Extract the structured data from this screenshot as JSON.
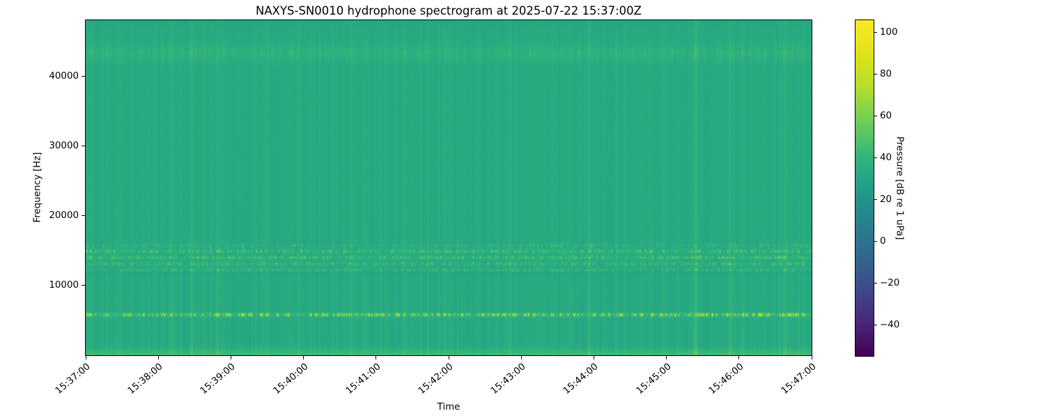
{
  "figure": {
    "background_color": "#ffffff",
    "text_color": "#000000"
  },
  "chart_data": {
    "type": "heatmap",
    "subtype": "spectrogram",
    "title": "NAXYS-SN0010 hydrophone spectrogram at 2025-07-22 15:37:00Z",
    "xlabel": "Time",
    "ylabel": "Frequency [Hz]",
    "x_ticks": [
      "15:37:00",
      "15:38:00",
      "15:39:00",
      "15:40:00",
      "15:41:00",
      "15:42:00",
      "15:43:00",
      "15:44:00",
      "15:45:00",
      "15:46:00",
      "15:47:00"
    ],
    "x_range": [
      "15:37:00",
      "15:47:00"
    ],
    "x_span_seconds": 600,
    "y_ticks": [
      10000,
      20000,
      30000,
      40000
    ],
    "y_tick_labels": [
      "10000",
      "20000",
      "30000",
      "40000"
    ],
    "freq_range_hz": [
      0,
      48000
    ],
    "grid": false,
    "colormap": "viridis",
    "colorbar": {
      "label": "Pressure [dB re 1 uPa]",
      "tick_values": [
        100,
        80,
        60,
        40,
        20,
        0,
        -20,
        -40
      ],
      "tick_labels": [
        "100",
        "80",
        "60",
        "40",
        "20",
        "0",
        "−20",
        "−40"
      ],
      "vmin": -55,
      "vmax": 106,
      "position": "right"
    },
    "features": {
      "background_level_db": 33,
      "pixel_noise_db": 0.8,
      "column_striping": {
        "fine_db": 1.6,
        "medium_db": 1.4,
        "spike_probability": 0.016,
        "spike_db_range": [
          1.5,
          9
        ],
        "frequency_envelope": {
          "floor": 0.4,
          "decay_hz": 11000
        }
      },
      "low_freq_shelf": {
        "cutoff_hz": 1300,
        "boost_db": 12
      },
      "high_edge_rolloff": {
        "start_hz": 46500,
        "drop_db": 1.5
      },
      "tonal_bands": [
        {
          "center_hz": 5800,
          "sigma_hz": 180,
          "base_boost_db": 7,
          "speckle_max_db": 38,
          "speckle_density": 0.45
        },
        {
          "center_hz": 12200,
          "sigma_hz": 150,
          "base_boost_db": 1.5,
          "speckle_max_db": 12,
          "speckle_density": 0.45
        },
        {
          "center_hz": 13100,
          "sigma_hz": 160,
          "base_boost_db": 2,
          "speckle_max_db": 14,
          "speckle_density": 0.5
        },
        {
          "center_hz": 14000,
          "sigma_hz": 170,
          "base_boost_db": 2.5,
          "speckle_max_db": 17,
          "speckle_density": 0.55
        },
        {
          "center_hz": 14900,
          "sigma_hz": 190,
          "base_boost_db": 2,
          "speckle_max_db": 17,
          "speckle_density": 0.5
        },
        {
          "center_hz": 15700,
          "sigma_hz": 200,
          "base_boost_db": 1,
          "speckle_max_db": 10,
          "speckle_density": 0.3
        },
        {
          "center_hz": 43300,
          "sigma_hz": 800,
          "base_boost_db": 3.5,
          "speckle_max_db": 4,
          "speckle_density": 0.3
        }
      ],
      "spectral_dips": [
        {
          "center_hz": 11800,
          "sigma_hz": 220,
          "drop_db": 2.5
        }
      ],
      "activity_profile": [
        [
          0.0,
          1.3
        ],
        [
          0.04,
          1.1
        ],
        [
          0.1,
          1.0
        ],
        [
          0.22,
          1.05
        ],
        [
          0.26,
          1.35
        ],
        [
          0.3,
          1.1
        ],
        [
          0.38,
          1.0
        ],
        [
          0.5,
          1.05
        ],
        [
          0.57,
          1.2
        ],
        [
          0.62,
          1.05
        ],
        [
          0.7,
          1.15
        ],
        [
          0.78,
          1.3
        ],
        [
          0.84,
          1.4
        ],
        [
          0.9,
          1.45
        ],
        [
          0.96,
          1.35
        ],
        [
          1.0,
          1.15
        ]
      ]
    }
  },
  "colors": {
    "viridis_stops": [
      "#440154",
      "#482878",
      "#3e4a89",
      "#31688e",
      "#26828e",
      "#1f9e89",
      "#35b779",
      "#6ece58",
      "#b5de2b",
      "#dfe318",
      "#fde725"
    ],
    "axis_color": "#000000"
  }
}
